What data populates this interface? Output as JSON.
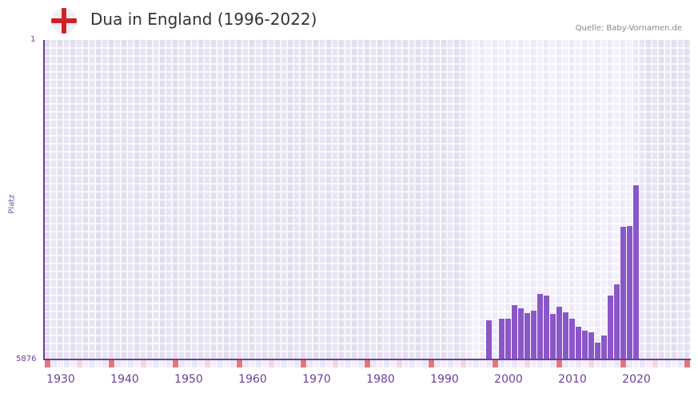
{
  "header": {
    "title": "Dua in England (1996-2022)",
    "flag_icon": "england-flag-icon",
    "source": "Quelle: Baby-Vornamen.de"
  },
  "colors": {
    "bar": "#8a57c8",
    "axis": "#6a3fa0",
    "grid_bg_dark": "#e3def0",
    "grid_bg_light": "#efebf8",
    "tick_major": "#e57380",
    "tick_minor": "#f5d6df"
  },
  "chart_data": {
    "type": "bar",
    "title": "Dua in England (1996-2022)",
    "xlabel": "",
    "ylabel": "Platz",
    "y_inverted": true,
    "ylim": [
      5876,
      1
    ],
    "y_tick_labels": [
      "1",
      "5876"
    ],
    "x_tick_labels": [
      "1930",
      "1940",
      "1950",
      "1960",
      "1970",
      "1980",
      "1990",
      "2000",
      "2010",
      "2020"
    ],
    "xlim": [
      1928,
      2028
    ],
    "grid": true,
    "highlight_range": [
      1994,
      2020
    ],
    "categories": [
      1997,
      1998,
      1999,
      2000,
      2001,
      2002,
      2003,
      2004,
      2005,
      2006,
      2007,
      2008,
      2009,
      2010,
      2011,
      2012,
      2013,
      2014,
      2015,
      2016,
      2017,
      2018,
      2019,
      2020
    ],
    "series": [
      {
        "name": "Platz",
        "values": [
          5160,
          null,
          5130,
          5130,
          4880,
          4940,
          5030,
          4980,
          4670,
          4700,
          5040,
          4900,
          5010,
          5130,
          5280,
          5340,
          5380,
          5570,
          5430,
          4700,
          4500,
          3440,
          3420,
          2680
        ]
      }
    ]
  }
}
